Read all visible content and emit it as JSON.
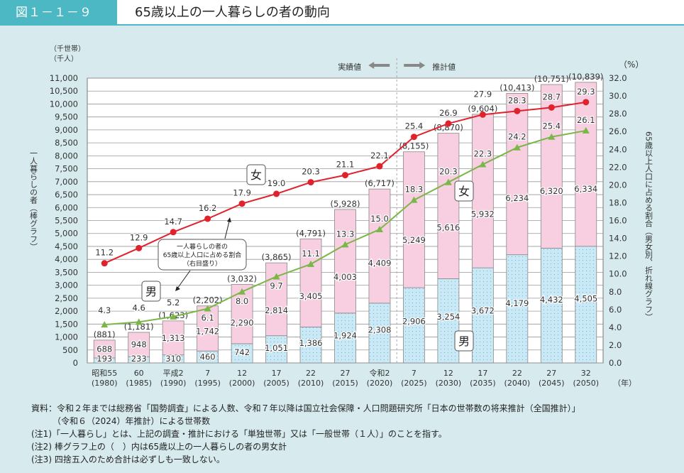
{
  "header": {
    "figure_no": "図１－１－９",
    "title": "65歳以上の一人暮らしの者の動向"
  },
  "chart_data": {
    "type": "bar+line",
    "left_axis": {
      "unit_lines": [
        "（千世帯）",
        "（千人）"
      ],
      "title": "一人暮らしの者（棒グラフ）",
      "ylim": [
        0,
        11000
      ],
      "ticks": [
        "0",
        "500",
        "1,000",
        "1,500",
        "2,000",
        "2,500",
        "3,000",
        "3,500",
        "4,000",
        "4,500",
        "5,000",
        "5,500",
        "6,000",
        "6,500",
        "7,000",
        "7,500",
        "8,000",
        "8,500",
        "9,000",
        "9,500",
        "10,000",
        "10,500",
        "11,000"
      ]
    },
    "right_axis": {
      "unit": "（%）",
      "title": "65歳以上人口に占める割合（男女別、折れ線グラフ）",
      "ylim": [
        0,
        32
      ],
      "ticks": [
        "0.0",
        "2.0",
        "4.0",
        "6.0",
        "8.0",
        "10.0",
        "12.0",
        "14.0",
        "16.0",
        "18.0",
        "20.0",
        "22.0",
        "24.0",
        "26.0",
        "28.0",
        "30.0",
        "32.0"
      ]
    },
    "x_unit": "（年）",
    "categories": [
      [
        "昭和55",
        "(1980)"
      ],
      [
        "60",
        "(1985)"
      ],
      [
        "平成2",
        "(1990)"
      ],
      [
        "7",
        "(1995)"
      ],
      [
        "12",
        "(2000)"
      ],
      [
        "17",
        "(2005)"
      ],
      [
        "22",
        "(2010)"
      ],
      [
        "27",
        "(2015)"
      ],
      [
        "令和2",
        "(2020)"
      ],
      [
        "7",
        "(2025)"
      ],
      [
        "12",
        "(2030)"
      ],
      [
        "17",
        "(2035)"
      ],
      [
        "22",
        "(2040)"
      ],
      [
        "27",
        "(2045)"
      ],
      [
        "32",
        "(2050)"
      ]
    ],
    "bars": {
      "male": [
        193,
        233,
        310,
        460,
        742,
        1051,
        1386,
        1924,
        2308,
        2906,
        3254,
        3672,
        4179,
        4432,
        4505
      ],
      "female": [
        688,
        948,
        1313,
        1742,
        2290,
        2814,
        3405,
        4003,
        4409,
        5249,
        5616,
        5932,
        6234,
        6320,
        6334
      ],
      "total": [
        881,
        1181,
        1623,
        2202,
        3032,
        3865,
        4791,
        5928,
        6717,
        8155,
        8870,
        9604,
        10413,
        10751,
        10839
      ]
    },
    "lines": {
      "female_pct": [
        11.2,
        12.9,
        14.7,
        16.2,
        17.9,
        19.0,
        20.3,
        21.1,
        22.1,
        25.4,
        26.9,
        27.9,
        28.3,
        28.7,
        29.3
      ],
      "male_pct": [
        4.3,
        4.6,
        5.2,
        6.1,
        8.0,
        9.7,
        11.1,
        13.3,
        15.0,
        18.3,
        20.3,
        22.3,
        24.2,
        25.4,
        26.1
      ]
    },
    "colors": {
      "male_bar": "#c9e9f6",
      "female_bar": "#f7cfe0",
      "female_line": "#e0222c",
      "male_line": "#7ab648",
      "grid": "#999999"
    },
    "grid": true,
    "labels": {
      "female": "女",
      "male": "男",
      "actual": "実績値",
      "projected": "推計値",
      "callout": [
        "一人暮らしの者の",
        "65歳以上人口に占める割合",
        "（右目盛り）"
      ]
    }
  },
  "notes": [
    "資料：令和２年までは総務省「国勢調査」による人数、令和７年以降は国立社会保障・人口問題研究所「日本の世帯数の将来推計（全国推計）」",
    "　　　（令和６（2024）年推計）による世帯数",
    "(注1)「一人暮らし」とは、上記の調査・推計における「単独世帯」又は「一般世帯（１人）」のことを指す。",
    "(注2) 棒グラフ上の（　）内は65歳以上の一人暮らしの者の男女計",
    "(注3) 四捨五入のため合計は必ずしも一致しない。"
  ]
}
